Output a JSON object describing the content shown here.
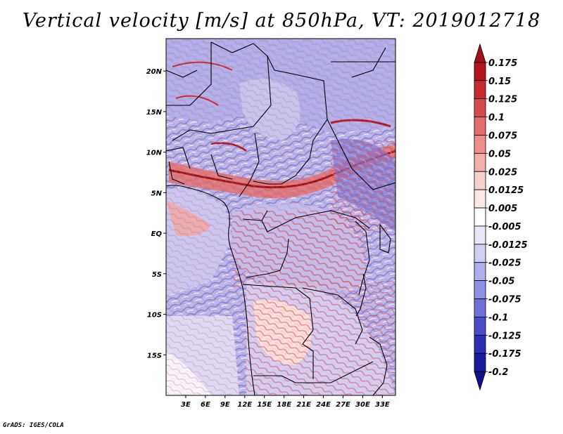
{
  "title": "Vertical velocity [m/s] at 850hPa, VT: 2019012718",
  "footer": "GrADS: IGES/COLA",
  "map": {
    "lon_range": [
      0,
      35
    ],
    "lat_range": [
      -20,
      24
    ],
    "lon_ticks": [
      "3E",
      "6E",
      "9E",
      "12E",
      "15E",
      "18E",
      "21E",
      "24E",
      "27E",
      "30E",
      "33E"
    ],
    "lat_ticks": [
      "20N",
      "15N",
      "10N",
      "5N",
      "EQ",
      "5S",
      "10S",
      "15S"
    ]
  },
  "colorbar": {
    "labels": [
      "0.175",
      "0.15",
      "0.125",
      "0.1",
      "0.075",
      "0.05",
      "0.025",
      "0.0125",
      "0.005",
      "-0.005",
      "-0.0125",
      "-0.025",
      "-0.05",
      "-0.075",
      "-0.1",
      "-0.125",
      "-0.175",
      "-0.2"
    ],
    "colors": [
      "#a01218",
      "#b4141c",
      "#c82a2e",
      "#d84a4a",
      "#e46c6a",
      "#ee8e8a",
      "#f5aeaa",
      "#fad0cd",
      "#fde8e6",
      "#ffffff",
      "#e8e8fa",
      "#cfcff5",
      "#b0b0ee",
      "#9090e4",
      "#7070d8",
      "#4c4cc8",
      "#2e2eb4",
      "#1a1aa0",
      "#10108a"
    ]
  }
}
